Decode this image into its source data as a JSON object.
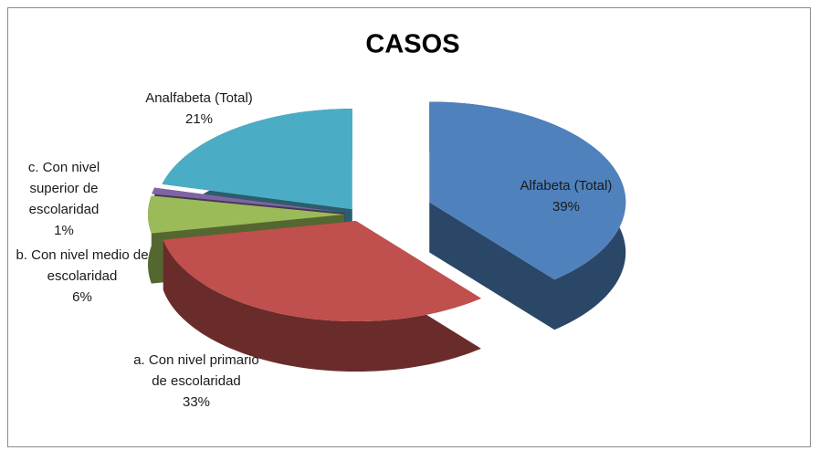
{
  "chart_data": {
    "type": "pie",
    "title": "CASOS",
    "categories": [
      "Alfabeta (Total)",
      "a. Con nivel primario de escolaridad",
      "b. Con nivel medio de escolaridad",
      "c. Con nivel superior de escolaridad",
      "Analfabeta (Total)"
    ],
    "values": [
      39,
      33,
      6,
      1,
      21
    ],
    "value_labels": [
      "39%",
      "33%",
      "6%",
      "1%",
      "21%"
    ],
    "colors": [
      "#4f81bd",
      "#c0504d",
      "#9bbb59",
      "#8064a2",
      "#4bacc6"
    ]
  }
}
